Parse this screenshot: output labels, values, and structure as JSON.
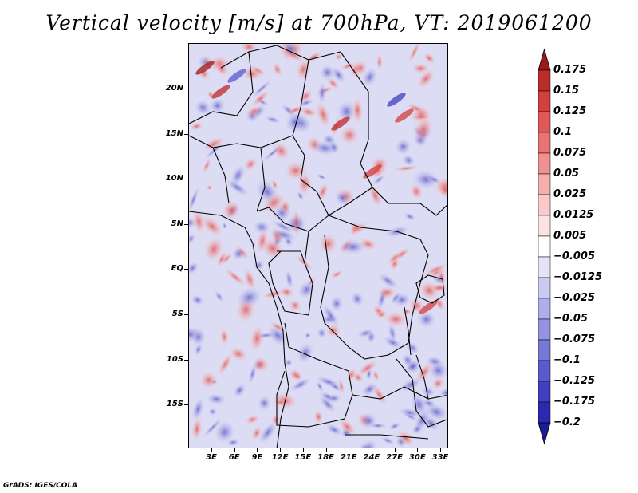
{
  "title": "Vertical velocity [m/s] at 700hPa, VT: 2019061200",
  "footer": "GrADS: IGES/COLA",
  "lat_labels": [
    "20N",
    "15N",
    "10N",
    "5N",
    "EQ",
    "5S",
    "10S",
    "15S"
  ],
  "lon_labels": [
    "3E",
    "6E",
    "9E",
    "12E",
    "15E",
    "18E",
    "21E",
    "24E",
    "27E",
    "30E",
    "33E"
  ],
  "colorbar": {
    "levels": [
      "0.175",
      "0.15",
      "0.125",
      "0.1",
      "0.075",
      "0.05",
      "0.025",
      "0.0125",
      "0.005",
      "-0.005",
      "-0.0125",
      "-0.025",
      "-0.05",
      "-0.075",
      "-0.1",
      "-0.125",
      "-0.175",
      "-0.2"
    ],
    "colors": [
      "#a01818",
      "#bd2a2a",
      "#d23f3f",
      "#e05858",
      "#e97474",
      "#ef9191",
      "#f5aeae",
      "#f9caca",
      "#fce4e4",
      "#ffffff",
      "#e4e4f6",
      "#cacaf0",
      "#aeaee8",
      "#9393e0",
      "#7777d6",
      "#5a5acb",
      "#3f3fbf",
      "#2a2ab0",
      "#1a1a9a"
    ],
    "over_color": "#a01818",
    "under_color": "#1a1a9a"
  }
}
